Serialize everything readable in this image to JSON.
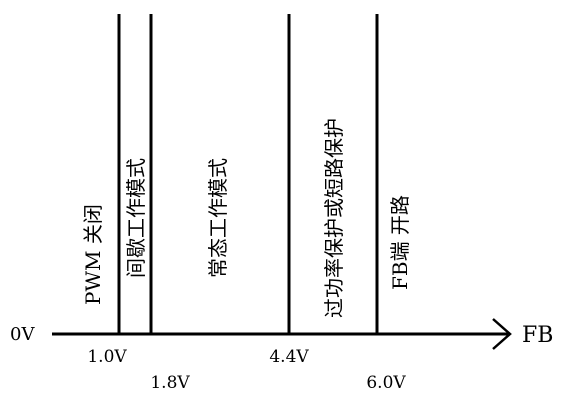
{
  "diagram": {
    "axis": {
      "origin_label": "0V",
      "end_label": "FB"
    },
    "thresholds": [
      {
        "value": 1.0,
        "label": "1.0V"
      },
      {
        "value": 1.8,
        "label": "1.8V"
      },
      {
        "value": 4.4,
        "label": "4.4V"
      },
      {
        "value": 6.0,
        "label": "6.0V"
      }
    ],
    "zones": [
      {
        "label": "PWM 关闭"
      },
      {
        "label": "间歇工作模式"
      },
      {
        "label": "常态工作模式"
      },
      {
        "label": "过功率保护或短路保护"
      },
      {
        "label": "FB端 开路"
      }
    ],
    "colors": {
      "line": "#000000",
      "background": "#ffffff"
    }
  }
}
